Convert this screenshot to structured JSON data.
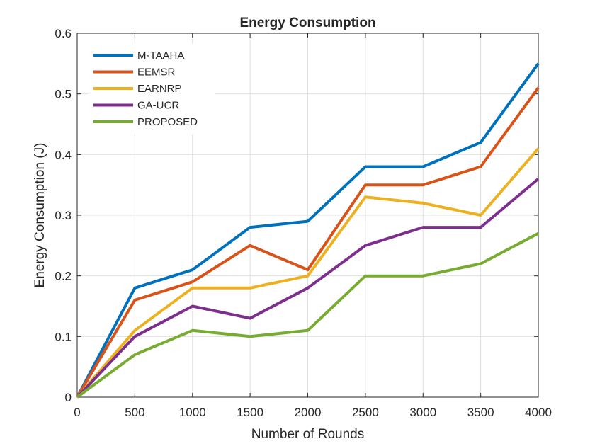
{
  "chart_data": {
    "type": "line",
    "title": "Energy Consumption",
    "xlabel": "Number of Rounds",
    "ylabel": "Energy Consumption (J)",
    "x": [
      0,
      500,
      1000,
      1500,
      2000,
      2500,
      3000,
      3500,
      4000
    ],
    "xlim": [
      0,
      4000
    ],
    "ylim": [
      0,
      0.6
    ],
    "xticks": [
      "0",
      "500",
      "1000",
      "1500",
      "2000",
      "2500",
      "3000",
      "3500",
      "4000"
    ],
    "yticks": [
      "0",
      "0.1",
      "0.2",
      "0.3",
      "0.4",
      "0.5",
      "0.6"
    ],
    "grid": true,
    "legend_position": "top-left",
    "series": [
      {
        "name": "M-TAAHA",
        "color": "#0072BD",
        "values": [
          0,
          0.18,
          0.21,
          0.28,
          0.29,
          0.38,
          0.38,
          0.42,
          0.55
        ]
      },
      {
        "name": "EEMSR",
        "color": "#D95319",
        "values": [
          0,
          0.16,
          0.19,
          0.25,
          0.21,
          0.35,
          0.35,
          0.38,
          0.51
        ]
      },
      {
        "name": "EARNRP",
        "color": "#EDB120",
        "values": [
          0,
          0.11,
          0.18,
          0.18,
          0.2,
          0.33,
          0.32,
          0.3,
          0.41
        ]
      },
      {
        "name": "GA-UCR",
        "color": "#7E2F8E",
        "values": [
          0,
          0.1,
          0.15,
          0.13,
          0.18,
          0.25,
          0.28,
          0.28,
          0.36
        ]
      },
      {
        "name": "PROPOSED",
        "color": "#77AC30",
        "values": [
          0,
          0.07,
          0.11,
          0.1,
          0.11,
          0.2,
          0.2,
          0.22,
          0.27
        ]
      }
    ]
  }
}
